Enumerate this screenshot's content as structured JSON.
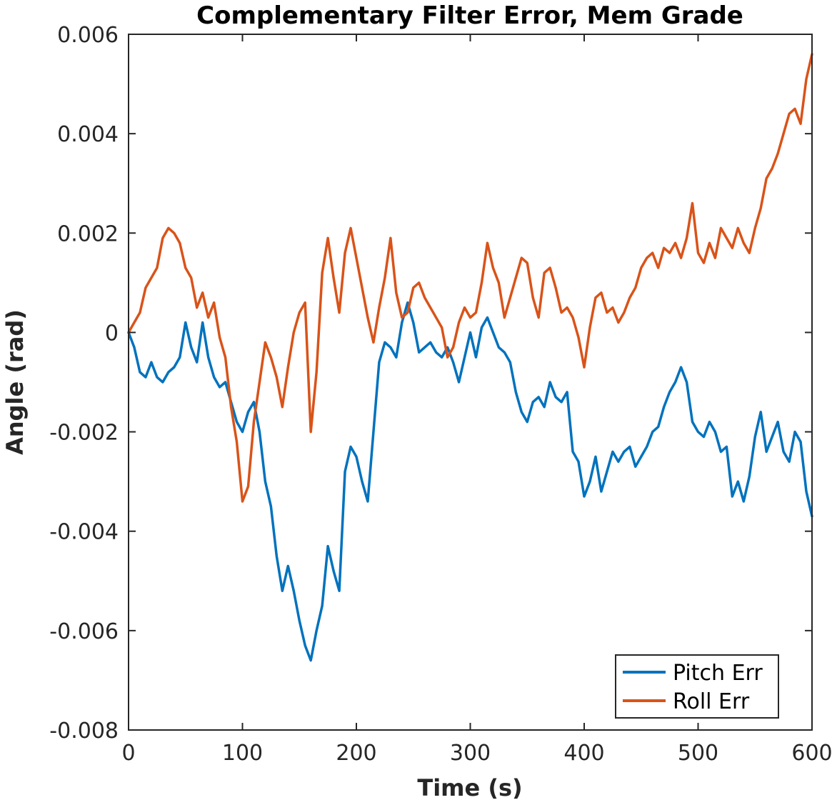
{
  "chart_data": {
    "type": "line",
    "title": "Complementary Filter Error, Mem Grade",
    "xlabel": "Time (s)",
    "ylabel": "Angle (rad)",
    "xlim": [
      0,
      600
    ],
    "ylim": [
      -0.008,
      0.006
    ],
    "x_ticks": [
      0,
      100,
      200,
      300,
      400,
      500,
      600
    ],
    "y_ticks": [
      -0.008,
      -0.006,
      -0.004,
      -0.002,
      0,
      0.002,
      0.004,
      0.006
    ],
    "x_tick_labels": [
      "0",
      "100",
      "200",
      "300",
      "400",
      "500",
      "600"
    ],
    "y_tick_labels": [
      "-0.008",
      "-0.006",
      "-0.004",
      "-0.002",
      "0",
      "0.002",
      "0.004",
      "0.006"
    ],
    "grid": false,
    "legend_position": "bottom-right",
    "series": [
      {
        "name": "Pitch Err",
        "color": "#0072BD",
        "x": [
          0,
          5,
          10,
          15,
          20,
          25,
          30,
          35,
          40,
          45,
          50,
          55,
          60,
          65,
          70,
          75,
          80,
          85,
          90,
          95,
          100,
          105,
          110,
          115,
          120,
          125,
          130,
          135,
          140,
          145,
          150,
          155,
          160,
          165,
          170,
          175,
          180,
          185,
          190,
          195,
          200,
          205,
          210,
          215,
          220,
          225,
          230,
          235,
          240,
          245,
          250,
          255,
          260,
          265,
          270,
          275,
          280,
          285,
          290,
          295,
          300,
          305,
          310,
          315,
          320,
          325,
          330,
          335,
          340,
          345,
          350,
          355,
          360,
          365,
          370,
          375,
          380,
          385,
          390,
          395,
          400,
          405,
          410,
          415,
          420,
          425,
          430,
          435,
          440,
          445,
          450,
          455,
          460,
          465,
          470,
          475,
          480,
          485,
          490,
          495,
          500,
          505,
          510,
          515,
          520,
          525,
          530,
          535,
          540,
          545,
          550,
          555,
          560,
          565,
          570,
          575,
          580,
          585,
          590,
          595,
          600
        ],
        "values": [
          0,
          -0.0003,
          -0.0008,
          -0.0009,
          -0.0006,
          -0.0009,
          -0.001,
          -0.0008,
          -0.0007,
          -0.0005,
          0.0002,
          -0.0003,
          -0.0006,
          0.0002,
          -0.0005,
          -0.0009,
          -0.0011,
          -0.001,
          -0.0014,
          -0.0018,
          -0.002,
          -0.0016,
          -0.0014,
          -0.002,
          -0.003,
          -0.0035,
          -0.0045,
          -0.0052,
          -0.0047,
          -0.0052,
          -0.0058,
          -0.0063,
          -0.0066,
          -0.006,
          -0.0055,
          -0.0043,
          -0.0048,
          -0.0052,
          -0.0028,
          -0.0023,
          -0.0025,
          -0.003,
          -0.0034,
          -0.002,
          -0.0006,
          -0.0002,
          -0.0003,
          -0.0005,
          0.0002,
          0.0006,
          0.0002,
          -0.0004,
          -0.0003,
          -0.0002,
          -0.0004,
          -0.0005,
          -0.0003,
          -0.0006,
          -0.001,
          -0.0005,
          0.0,
          -0.0005,
          0.0001,
          0.0003,
          0.0,
          -0.0003,
          -0.0004,
          -0.0006,
          -0.0012,
          -0.0016,
          -0.0018,
          -0.0014,
          -0.0013,
          -0.0015,
          -0.001,
          -0.0013,
          -0.0014,
          -0.0012,
          -0.0024,
          -0.0026,
          -0.0033,
          -0.003,
          -0.0025,
          -0.0032,
          -0.0028,
          -0.0024,
          -0.0026,
          -0.0024,
          -0.0023,
          -0.0027,
          -0.0025,
          -0.0023,
          -0.002,
          -0.0019,
          -0.0015,
          -0.0012,
          -0.001,
          -0.0007,
          -0.001,
          -0.0018,
          -0.002,
          -0.0021,
          -0.0018,
          -0.002,
          -0.0024,
          -0.0023,
          -0.0033,
          -0.003,
          -0.0034,
          -0.0029,
          -0.0021,
          -0.0016,
          -0.0024,
          -0.0021,
          -0.0018,
          -0.0024,
          -0.0026,
          -0.002,
          -0.0022,
          -0.0032,
          -0.0037
        ]
      },
      {
        "name": "Roll Err",
        "color": "#D95319",
        "x": [
          0,
          5,
          10,
          15,
          20,
          25,
          30,
          35,
          40,
          45,
          50,
          55,
          60,
          65,
          70,
          75,
          80,
          85,
          90,
          95,
          100,
          105,
          110,
          115,
          120,
          125,
          130,
          135,
          140,
          145,
          150,
          155,
          160,
          165,
          170,
          175,
          180,
          185,
          190,
          195,
          200,
          205,
          210,
          215,
          220,
          225,
          230,
          235,
          240,
          245,
          250,
          255,
          260,
          265,
          270,
          275,
          280,
          285,
          290,
          295,
          300,
          305,
          310,
          315,
          320,
          325,
          330,
          335,
          340,
          345,
          350,
          355,
          360,
          365,
          370,
          375,
          380,
          385,
          390,
          395,
          400,
          405,
          410,
          415,
          420,
          425,
          430,
          435,
          440,
          445,
          450,
          455,
          460,
          465,
          470,
          475,
          480,
          485,
          490,
          495,
          500,
          505,
          510,
          515,
          520,
          525,
          530,
          535,
          540,
          545,
          550,
          555,
          560,
          565,
          570,
          575,
          580,
          585,
          590,
          595,
          600
        ],
        "values": [
          0,
          0.0002,
          0.0004,
          0.0009,
          0.0011,
          0.0013,
          0.0019,
          0.0021,
          0.002,
          0.0018,
          0.0013,
          0.0011,
          0.0005,
          0.0008,
          0.0003,
          0.0006,
          -0.0001,
          -0.0005,
          -0.0015,
          -0.0022,
          -0.0034,
          -0.0031,
          -0.0018,
          -0.001,
          -0.0002,
          -0.0005,
          -0.0009,
          -0.0015,
          -0.0007,
          0.0,
          0.0004,
          0.0006,
          -0.002,
          -0.0008,
          0.0012,
          0.0019,
          0.0011,
          0.0004,
          0.0016,
          0.0021,
          0.0015,
          0.0009,
          0.0003,
          -0.0002,
          0.0005,
          0.0011,
          0.0019,
          0.0008,
          0.0003,
          0.0004,
          0.0009,
          0.001,
          0.0007,
          0.0005,
          0.0003,
          0.0001,
          -0.0005,
          -0.0003,
          0.0002,
          0.0005,
          0.0003,
          0.0004,
          0.001,
          0.0018,
          0.0013,
          0.001,
          0.0003,
          0.0007,
          0.0011,
          0.0015,
          0.0014,
          0.0007,
          0.0003,
          0.0012,
          0.0013,
          0.0009,
          0.0004,
          0.0005,
          0.0003,
          -0.0001,
          -0.0007,
          0.0001,
          0.0007,
          0.0008,
          0.0004,
          0.0005,
          0.0002,
          0.0004,
          0.0007,
          0.0009,
          0.0013,
          0.0015,
          0.0016,
          0.0013,
          0.0017,
          0.0016,
          0.0018,
          0.0015,
          0.0019,
          0.0026,
          0.0016,
          0.0014,
          0.0018,
          0.0015,
          0.0021,
          0.0019,
          0.0017,
          0.0021,
          0.0018,
          0.0016,
          0.0021,
          0.0025,
          0.0031,
          0.0033,
          0.0036,
          0.004,
          0.0044,
          0.0045,
          0.0042,
          0.0051,
          0.0056
        ]
      }
    ]
  }
}
